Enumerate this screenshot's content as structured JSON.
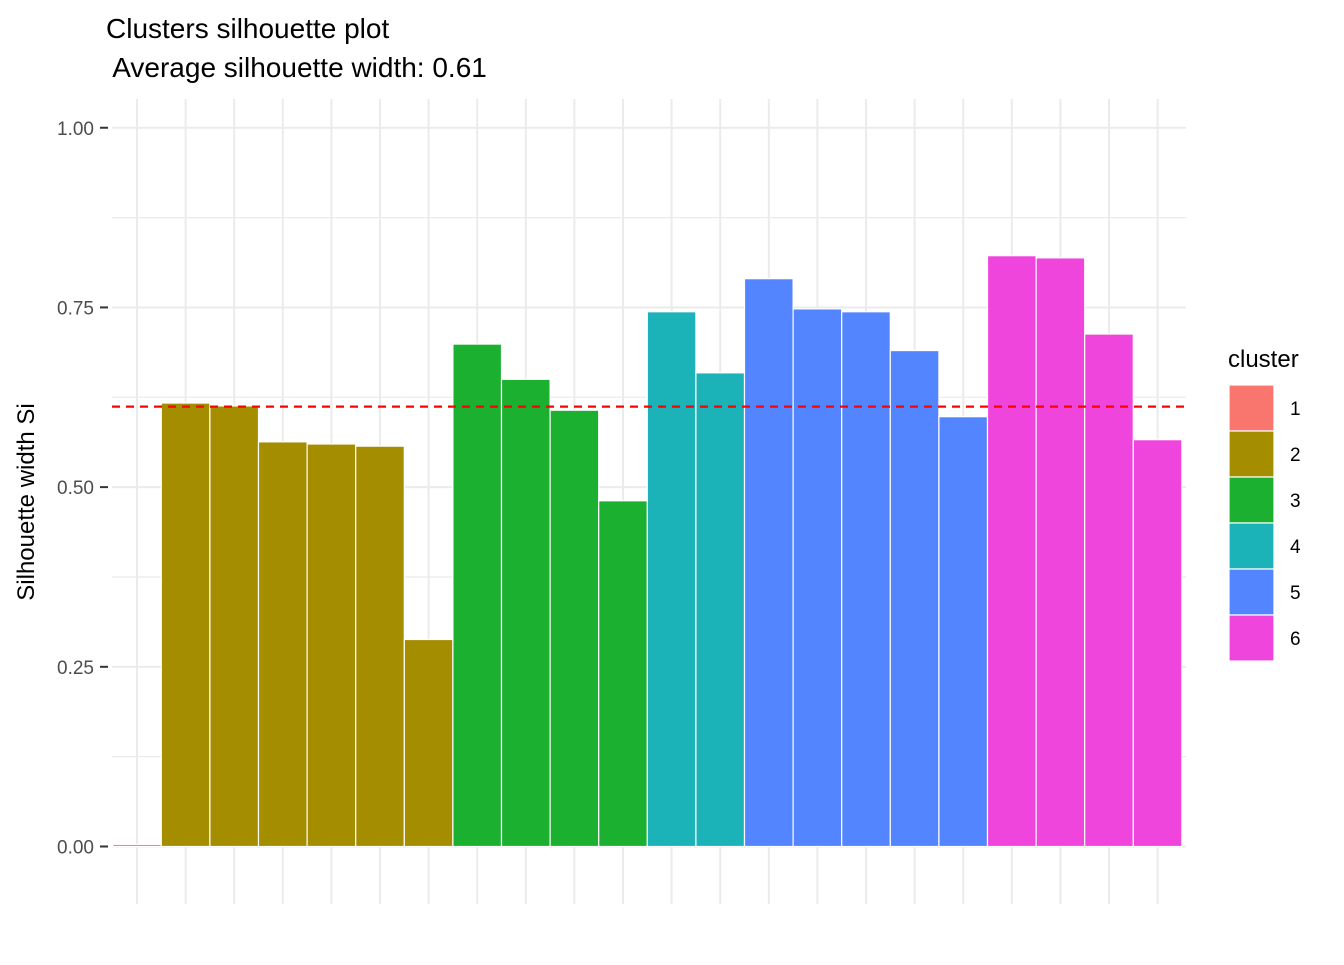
{
  "chart_data": {
    "type": "bar",
    "title": "Clusters silhouette plot",
    "subtitle": " Average silhouette width: 0.61",
    "xlabel": "",
    "ylabel": "Silhouette width Si",
    "ylim": [
      -0.08,
      1.04
    ],
    "yticks": [
      0,
      0.25,
      0.5,
      0.75,
      1
    ],
    "ytick_labels": [
      "0.00",
      "0.25",
      "0.50",
      "0.75",
      "1.00"
    ],
    "grid": true,
    "average_line": {
      "value": 0.612,
      "color": "#FF0000",
      "style": "dashed"
    },
    "legend": {
      "title": "cluster",
      "position": "right",
      "entries": [
        {
          "label": "1",
          "color": "#F8766D"
        },
        {
          "label": "2",
          "color": "#A58D00"
        },
        {
          "label": "3",
          "color": "#1BB02F"
        },
        {
          "label": "4",
          "color": "#1BB3B7"
        },
        {
          "label": "5",
          "color": "#5285FF"
        },
        {
          "label": "6",
          "color": "#EF45DD"
        }
      ]
    },
    "bars": [
      {
        "cluster": "1",
        "value": 0.003
      },
      {
        "cluster": "2",
        "value": 0.617
      },
      {
        "cluster": "2",
        "value": 0.613
      },
      {
        "cluster": "2",
        "value": 0.563
      },
      {
        "cluster": "2",
        "value": 0.56
      },
      {
        "cluster": "2",
        "value": 0.557
      },
      {
        "cluster": "2",
        "value": 0.288
      },
      {
        "cluster": "3",
        "value": 0.699
      },
      {
        "cluster": "3",
        "value": 0.65
      },
      {
        "cluster": "3",
        "value": 0.607
      },
      {
        "cluster": "3",
        "value": 0.481
      },
      {
        "cluster": "4",
        "value": 0.744
      },
      {
        "cluster": "4",
        "value": 0.659
      },
      {
        "cluster": "5",
        "value": 0.79
      },
      {
        "cluster": "5",
        "value": 0.748
      },
      {
        "cluster": "5",
        "value": 0.744
      },
      {
        "cluster": "5",
        "value": 0.69
      },
      {
        "cluster": "5",
        "value": 0.598
      },
      {
        "cluster": "6",
        "value": 0.822
      },
      {
        "cluster": "6",
        "value": 0.819
      },
      {
        "cluster": "6",
        "value": 0.713
      },
      {
        "cluster": "6",
        "value": 0.566
      }
    ]
  }
}
